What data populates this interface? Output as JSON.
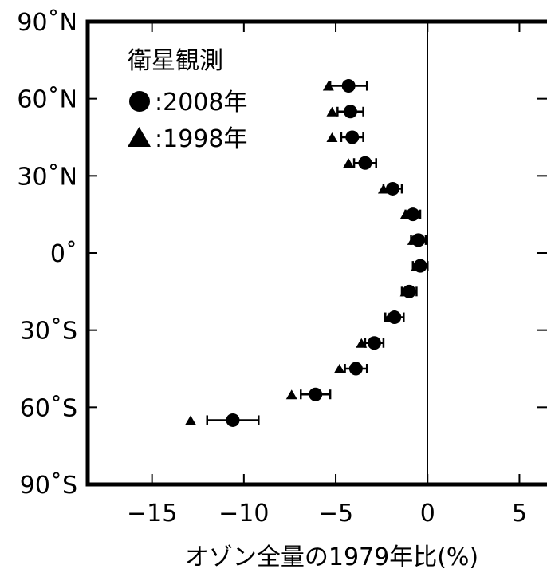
{
  "chart_data": {
    "type": "scatter",
    "xlabel": "オゾン全量の1979年比(%)",
    "ylabel": "",
    "xlim": [
      -18.5,
      6.5
    ],
    "ylim": [
      -90,
      90
    ],
    "x_ticks": [
      {
        "value": -15,
        "label": "−15"
      },
      {
        "value": -10,
        "label": "−10"
      },
      {
        "value": -5,
        "label": "−5"
      },
      {
        "value": 0,
        "label": "0"
      },
      {
        "value": 5,
        "label": "5"
      }
    ],
    "y_ticks": [
      {
        "value": 90,
        "label": "90˚N"
      },
      {
        "value": 60,
        "label": "60˚N"
      },
      {
        "value": 30,
        "label": "30˚N"
      },
      {
        "value": 0,
        "label": "0˚"
      },
      {
        "value": -30,
        "label": "30˚S"
      },
      {
        "value": -60,
        "label": "60˚S"
      },
      {
        "value": -90,
        "label": "90˚S"
      }
    ],
    "reference_line_x": 0,
    "legend": {
      "title": "衛星観測",
      "placement": "top-left",
      "entries": [
        {
          "marker": "circle",
          "label": ":2008年"
        },
        {
          "marker": "triangle",
          "label": ":1998年"
        }
      ]
    },
    "series": [
      {
        "name": ":2008年",
        "marker": "circle",
        "points": [
          {
            "lat": 65,
            "x": -4.3,
            "err": 1.0
          },
          {
            "lat": 55,
            "x": -4.2,
            "err": 0.7
          },
          {
            "lat": 45,
            "x": -4.1,
            "err": 0.6
          },
          {
            "lat": 35,
            "x": -3.4,
            "err": 0.6
          },
          {
            "lat": 25,
            "x": -1.9,
            "err": 0.5
          },
          {
            "lat": 15,
            "x": -0.8,
            "err": 0.4
          },
          {
            "lat": 5,
            "x": -0.5,
            "err": 0.4
          },
          {
            "lat": -5,
            "x": -0.4,
            "err": 0.4
          },
          {
            "lat": -15,
            "x": -1.0,
            "err": 0.4
          },
          {
            "lat": -25,
            "x": -1.8,
            "err": 0.5
          },
          {
            "lat": -35,
            "x": -2.9,
            "err": 0.5
          },
          {
            "lat": -45,
            "x": -3.9,
            "err": 0.6
          },
          {
            "lat": -55,
            "x": -6.1,
            "err": 0.8
          },
          {
            "lat": -65,
            "x": -10.6,
            "err": 1.4
          }
        ]
      },
      {
        "name": ":1998年",
        "marker": "triangle",
        "points": [
          {
            "lat": 65,
            "x": -5.4
          },
          {
            "lat": 55,
            "x": -5.2
          },
          {
            "lat": 45,
            "x": -5.2
          },
          {
            "lat": 35,
            "x": -4.3
          },
          {
            "lat": 25,
            "x": -2.4
          },
          {
            "lat": 15,
            "x": -1.2
          },
          {
            "lat": 5,
            "x": -0.8
          },
          {
            "lat": -5,
            "x": -0.6
          },
          {
            "lat": -15,
            "x": -1.2
          },
          {
            "lat": -25,
            "x": -2.1
          },
          {
            "lat": -35,
            "x": -3.6
          },
          {
            "lat": -45,
            "x": -4.8
          },
          {
            "lat": -55,
            "x": -7.4
          },
          {
            "lat": -65,
            "x": -12.9
          }
        ]
      }
    ]
  }
}
